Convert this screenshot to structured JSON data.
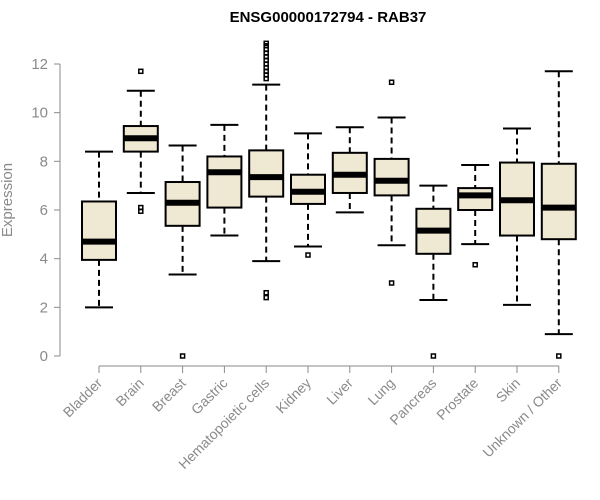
{
  "chart_data": {
    "type": "box",
    "title": "ENSG00000172794 - RAB37",
    "xlabel": "",
    "ylabel": "Expression",
    "ylim": [
      0,
      12
    ],
    "yticks": [
      0,
      2,
      4,
      6,
      8,
      10,
      12
    ],
    "categories": [
      "Bladder",
      "Brain",
      "Breast",
      "Gastric",
      "Hematopoietic cells",
      "Kidney",
      "Liver",
      "Lung",
      "Pancreas",
      "Prostate",
      "Skin",
      "Unknown / Other"
    ],
    "boxes": [
      {
        "name": "Bladder",
        "whisker_low": 2.0,
        "q1": 3.95,
        "median": 4.7,
        "q3": 6.35,
        "whisker_high": 8.4,
        "outliers": []
      },
      {
        "name": "Brain",
        "whisker_low": 6.7,
        "q1": 8.4,
        "median": 8.95,
        "q3": 9.45,
        "whisker_high": 10.9,
        "outliers": [
          11.7,
          6.1,
          5.95
        ]
      },
      {
        "name": "Breast",
        "whisker_low": 3.35,
        "q1": 5.35,
        "median": 6.3,
        "q3": 7.15,
        "whisker_high": 8.65,
        "outliers": [
          0.0
        ]
      },
      {
        "name": "Gastric",
        "whisker_low": 4.95,
        "q1": 6.1,
        "median": 7.55,
        "q3": 8.2,
        "whisker_high": 9.5,
        "outliers": []
      },
      {
        "name": "Hematopoietic cells",
        "whisker_low": 3.9,
        "q1": 6.55,
        "median": 7.35,
        "q3": 8.45,
        "whisker_high": 11.15,
        "outliers": [
          11.4,
          11.55,
          11.7,
          11.85,
          12.0,
          12.15,
          12.3,
          12.45,
          12.6,
          12.75,
          12.85,
          2.6,
          2.4
        ]
      },
      {
        "name": "Kidney",
        "whisker_low": 4.5,
        "q1": 6.25,
        "median": 6.75,
        "q3": 7.45,
        "whisker_high": 9.15,
        "outliers": [
          4.15
        ]
      },
      {
        "name": "Liver",
        "whisker_low": 5.9,
        "q1": 6.7,
        "median": 7.45,
        "q3": 8.35,
        "whisker_high": 9.4,
        "outliers": []
      },
      {
        "name": "Lung",
        "whisker_low": 4.55,
        "q1": 6.6,
        "median": 7.2,
        "q3": 8.1,
        "whisker_high": 9.8,
        "outliers": [
          11.25,
          3.0
        ]
      },
      {
        "name": "Pancreas",
        "whisker_low": 2.3,
        "q1": 4.2,
        "median": 5.15,
        "q3": 6.05,
        "whisker_high": 7.0,
        "outliers": [
          0.0
        ]
      },
      {
        "name": "Prostate",
        "whisker_low": 4.6,
        "q1": 6.0,
        "median": 6.6,
        "q3": 6.9,
        "whisker_high": 7.85,
        "outliers": [
          3.75
        ]
      },
      {
        "name": "Skin",
        "whisker_low": 2.1,
        "q1": 4.95,
        "median": 6.4,
        "q3": 7.95,
        "whisker_high": 9.35,
        "outliers": []
      },
      {
        "name": "Unknown / Other",
        "whisker_low": 0.9,
        "q1": 4.8,
        "median": 6.1,
        "q3": 7.9,
        "whisker_high": 11.7,
        "outliers": [
          0.0
        ]
      }
    ],
    "colors": {
      "box_fill": "#efe8d2",
      "stroke": "#000000",
      "axis": "#8a8a8a"
    }
  }
}
